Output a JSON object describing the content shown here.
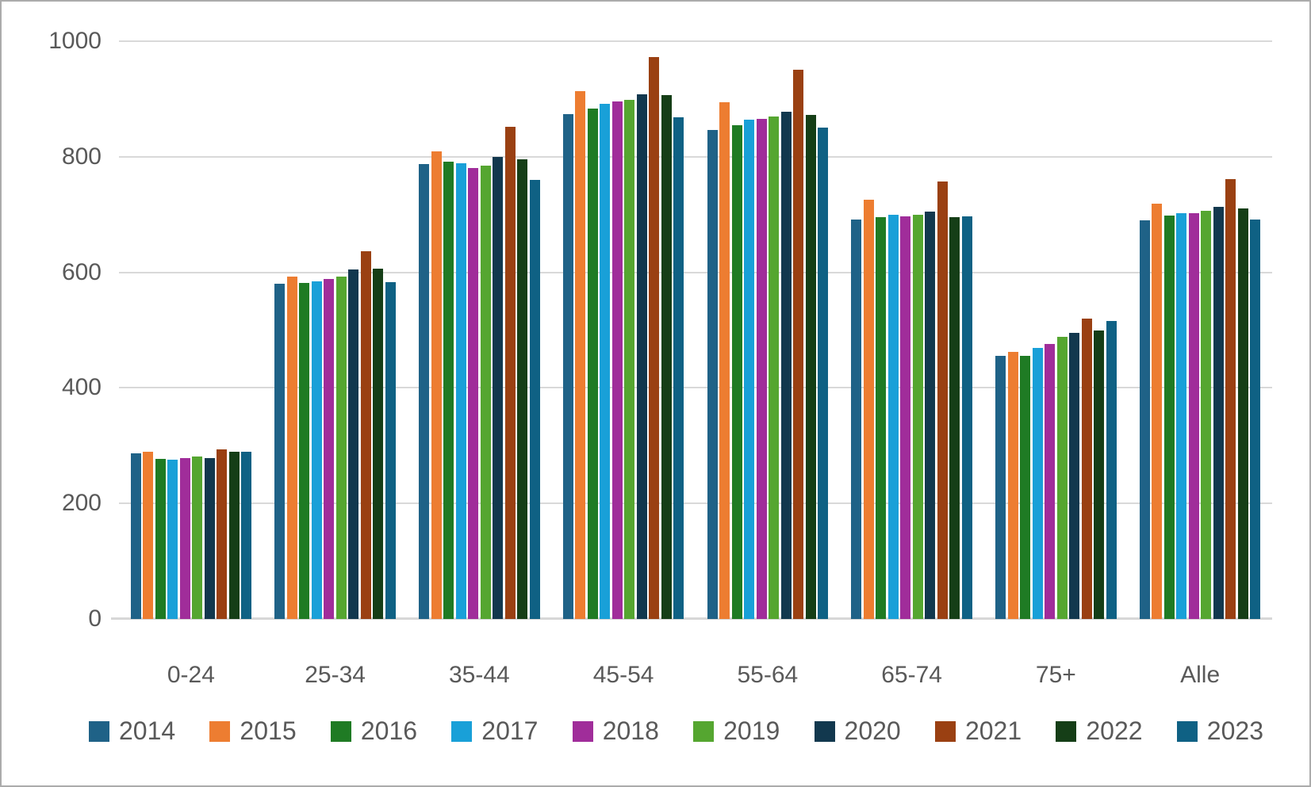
{
  "chart_data": {
    "type": "bar",
    "title": "",
    "xlabel": "",
    "ylabel": "",
    "categories": [
      "0-24",
      "25-34",
      "35-44",
      "45-54",
      "55-64",
      "65-74",
      "75+",
      "Alle"
    ],
    "series": [
      {
        "name": "2014",
        "color": "#1F6287",
        "values": [
          287,
          580,
          788,
          874,
          846,
          691,
          456,
          690
        ]
      },
      {
        "name": "2015",
        "color": "#ED7D31",
        "values": [
          289,
          593,
          809,
          914,
          894,
          726,
          462,
          719
        ]
      },
      {
        "name": "2016",
        "color": "#1F7B24",
        "values": [
          277,
          582,
          792,
          884,
          855,
          695,
          455,
          698
        ]
      },
      {
        "name": "2017",
        "color": "#19A0D8",
        "values": [
          276,
          585,
          789,
          892,
          864,
          700,
          469,
          702
        ]
      },
      {
        "name": "2018",
        "color": "#A02D9A",
        "values": [
          278,
          589,
          781,
          896,
          866,
          697,
          476,
          703
        ]
      },
      {
        "name": "2019",
        "color": "#55A630",
        "values": [
          281,
          593,
          784,
          899,
          870,
          700,
          488,
          706
        ]
      },
      {
        "name": "2020",
        "color": "#12384E",
        "values": [
          278,
          605,
          800,
          908,
          878,
          705,
          495,
          713
        ]
      },
      {
        "name": "2021",
        "color": "#9A4012",
        "values": [
          293,
          637,
          852,
          973,
          950,
          757,
          520,
          762
        ]
      },
      {
        "name": "2022",
        "color": "#153E17",
        "values": [
          290,
          607,
          795,
          907,
          873,
          695,
          500,
          711
        ]
      },
      {
        "name": "2023",
        "color": "#0F6184",
        "values": [
          289,
          583,
          760,
          869,
          851,
          697,
          516,
          692
        ]
      }
    ],
    "ylim": [
      0,
      1000
    ],
    "yticks": [
      0,
      200,
      400,
      600,
      800,
      1000
    ],
    "grid": true,
    "legend_position": "bottom"
  },
  "colors": {
    "grid": "#D9D9D9",
    "axis_text": "#595959",
    "background": "#FFFFFF",
    "border": "#ABABAB"
  }
}
